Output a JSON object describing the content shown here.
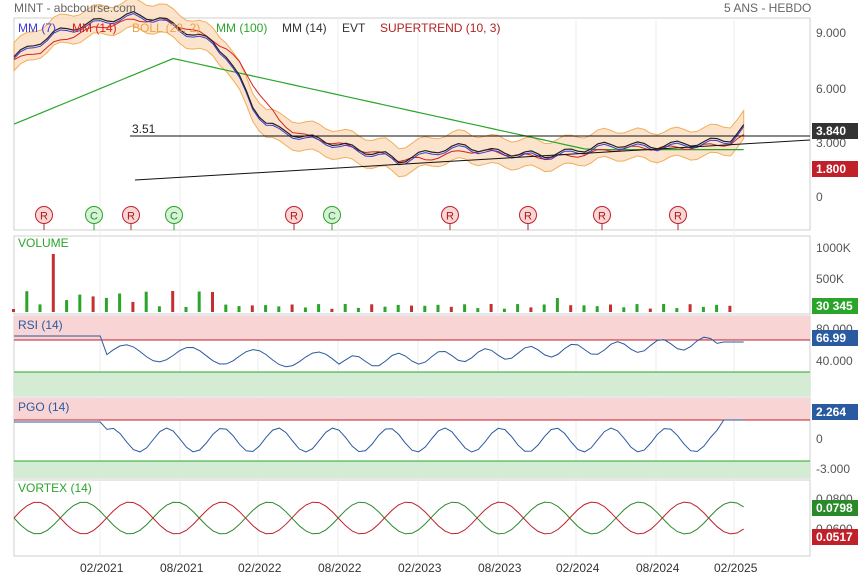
{
  "header": {
    "title": "MINT - abcbourse.com",
    "period": "5 ANS - HEBDO"
  },
  "legend": [
    {
      "text": "MM (7)",
      "color": "#3b3bd6"
    },
    {
      "text": "MM (14)",
      "color": "#d62020"
    },
    {
      "text": "BOLL (20, 2)",
      "color": "#f0a040"
    },
    {
      "text": "MM (100)",
      "color": "#2aa52a"
    },
    {
      "text": "MM (14)",
      "color": "#333333"
    },
    {
      "text": "EVT",
      "color": "#333333"
    },
    {
      "text": "SUPERTREND (10, 3)",
      "color": "#b22222"
    }
  ],
  "price_axis": [
    "9.000",
    "6.000",
    "3.000",
    "0"
  ],
  "hline_label": "3.51",
  "badges": {
    "price": "3.840",
    "low": "1.800",
    "volume": "30 345",
    "rsi": "66.99",
    "pgo": "2.264",
    "vortex_plus": "0.0798",
    "vortex_minus": "0.0517"
  },
  "colors": {
    "price_badge": "#333333",
    "low_badge": "#c0202a",
    "volume_badge": "#2aa52a",
    "osc_badge": "#2a5aa0",
    "vortex_plus": "#2a8a2a",
    "vortex_minus": "#c0202a"
  },
  "signals": [
    "R",
    "C",
    "R",
    "C",
    "R",
    "C",
    "R",
    "R",
    "R",
    "R"
  ],
  "volume_panel": {
    "title": "VOLUME",
    "axis": [
      "1000K",
      "500K"
    ]
  },
  "rsi_panel": {
    "title": "RSI (14)",
    "axis": [
      "80.000",
      "40.000"
    ]
  },
  "pgo_panel": {
    "title": "PGO (14)",
    "axis": [
      "0",
      "-3.000"
    ]
  },
  "vortex_panel": {
    "title": "VORTEX (14)",
    "axis": [
      "0.0800",
      "0.0600"
    ]
  },
  "x_axis": [
    "02/2021",
    "08/2021",
    "02/2022",
    "08/2022",
    "02/2023",
    "08/2023",
    "02/2024",
    "08/2024",
    "02/2025"
  ],
  "chart_data": {
    "type": "line",
    "x_ticks": [
      "02/2021",
      "08/2021",
      "02/2022",
      "08/2022",
      "02/2023",
      "08/2023",
      "02/2024",
      "08/2024",
      "02/2025"
    ],
    "price_keypoints": [
      [
        0,
        7.7
      ],
      [
        3,
        9.0
      ],
      [
        6,
        9.6
      ],
      [
        9,
        10.0
      ],
      [
        11,
        9.8
      ],
      [
        13,
        9.1
      ],
      [
        15,
        8.5
      ],
      [
        16,
        7.8
      ],
      [
        17,
        6.5
      ],
      [
        18,
        5.0
      ],
      [
        19,
        4.1
      ],
      [
        20,
        3.7
      ],
      [
        22,
        3.3
      ],
      [
        24,
        3.0
      ],
      [
        26,
        2.6
      ],
      [
        28,
        2.3
      ],
      [
        29,
        2.0
      ],
      [
        30,
        2.2
      ],
      [
        32,
        2.6
      ],
      [
        34,
        2.8
      ],
      [
        36,
        2.5
      ],
      [
        38,
        2.4
      ],
      [
        40,
        2.3
      ],
      [
        42,
        2.5
      ],
      [
        44,
        2.8
      ],
      [
        46,
        2.9
      ],
      [
        48,
        2.8
      ],
      [
        50,
        2.9
      ],
      [
        52,
        3.0
      ],
      [
        54,
        3.2
      ],
      [
        55,
        3.84
      ]
    ],
    "support_line": {
      "from": [
        0,
        0.9
      ],
      "to": [
        60,
        3.0
      ]
    },
    "hline_value": 3.51,
    "volume_spike": 1000000
  }
}
